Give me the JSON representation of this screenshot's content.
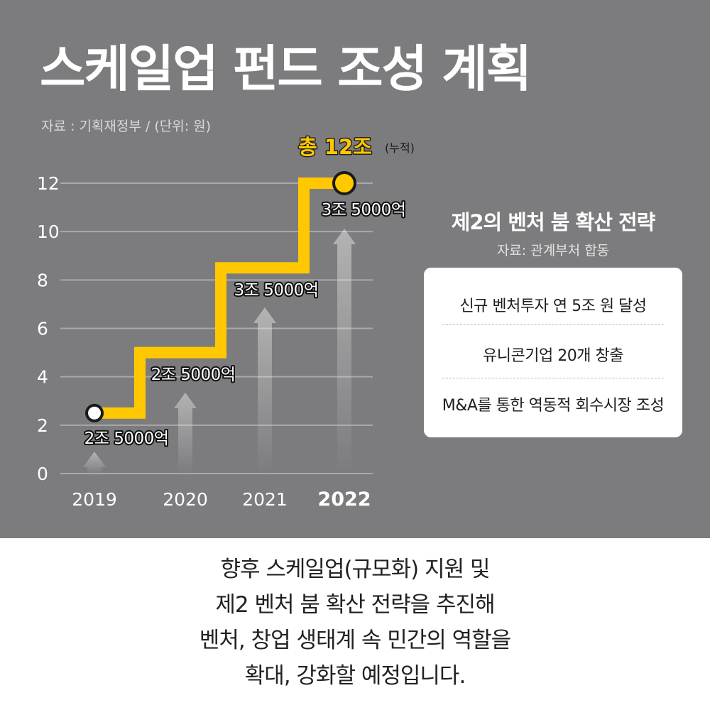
{
  "header": {
    "title": "스케일업 펀드 조성 계획",
    "source": "자료 : 기획재정부  / (단위: 원)"
  },
  "chart_data": {
    "type": "line",
    "x": [
      "2019",
      "2020",
      "2021",
      "2022"
    ],
    "series": [
      {
        "values": [
          2.5,
          5.0,
          8.5,
          12.0
        ],
        "labels": [
          "2조 5000억",
          "2조 5000억",
          "3조 5000억",
          "3조 5000억"
        ]
      }
    ],
    "yticks": [
      "0",
      "2",
      "4",
      "6",
      "8",
      "10",
      "12"
    ],
    "ylim": [
      0,
      12
    ],
    "grid": true,
    "total_label": "총 12조",
    "total_note": "(누적)",
    "highlight_color": "#ffc800"
  },
  "side_panel": {
    "title": "제2의 벤처 붐 확산 전략",
    "source": "자료: 관계부처 합동",
    "items": [
      "신규 벤처투자 연 5조 원 달성",
      "유니콘기업 20개 창출",
      "M&A를 통한 역동적 회수시장 조성"
    ]
  },
  "caption": {
    "lines": [
      "향후 스케일업(규모화) 지원 및",
      "제2 벤처 붐 확산 전략을 추진해",
      "벤처, 창업 생태계 속 민간의 역할을",
      "확대, 강화할 예정입니다."
    ]
  }
}
